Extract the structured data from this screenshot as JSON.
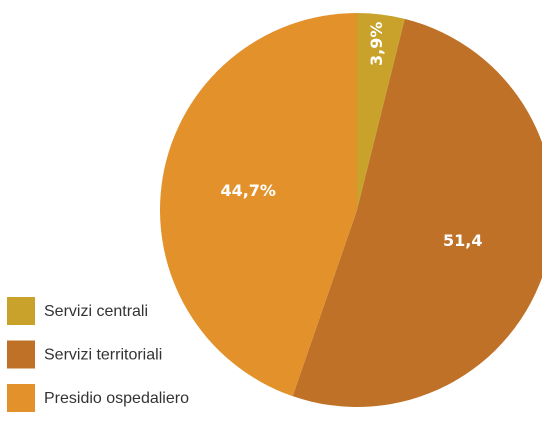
{
  "chart_data": {
    "type": "pie",
    "categories": [
      "Servizi centrali",
      "Servizi territoriali",
      "Presidio ospedaliero"
    ],
    "values": [
      3.9,
      51.4,
      44.7
    ],
    "value_labels": [
      "3,9%",
      "51,4",
      "44,7%"
    ],
    "colors": [
      "#c8a22a",
      "#bf7128",
      "#e3922b"
    ]
  }
}
